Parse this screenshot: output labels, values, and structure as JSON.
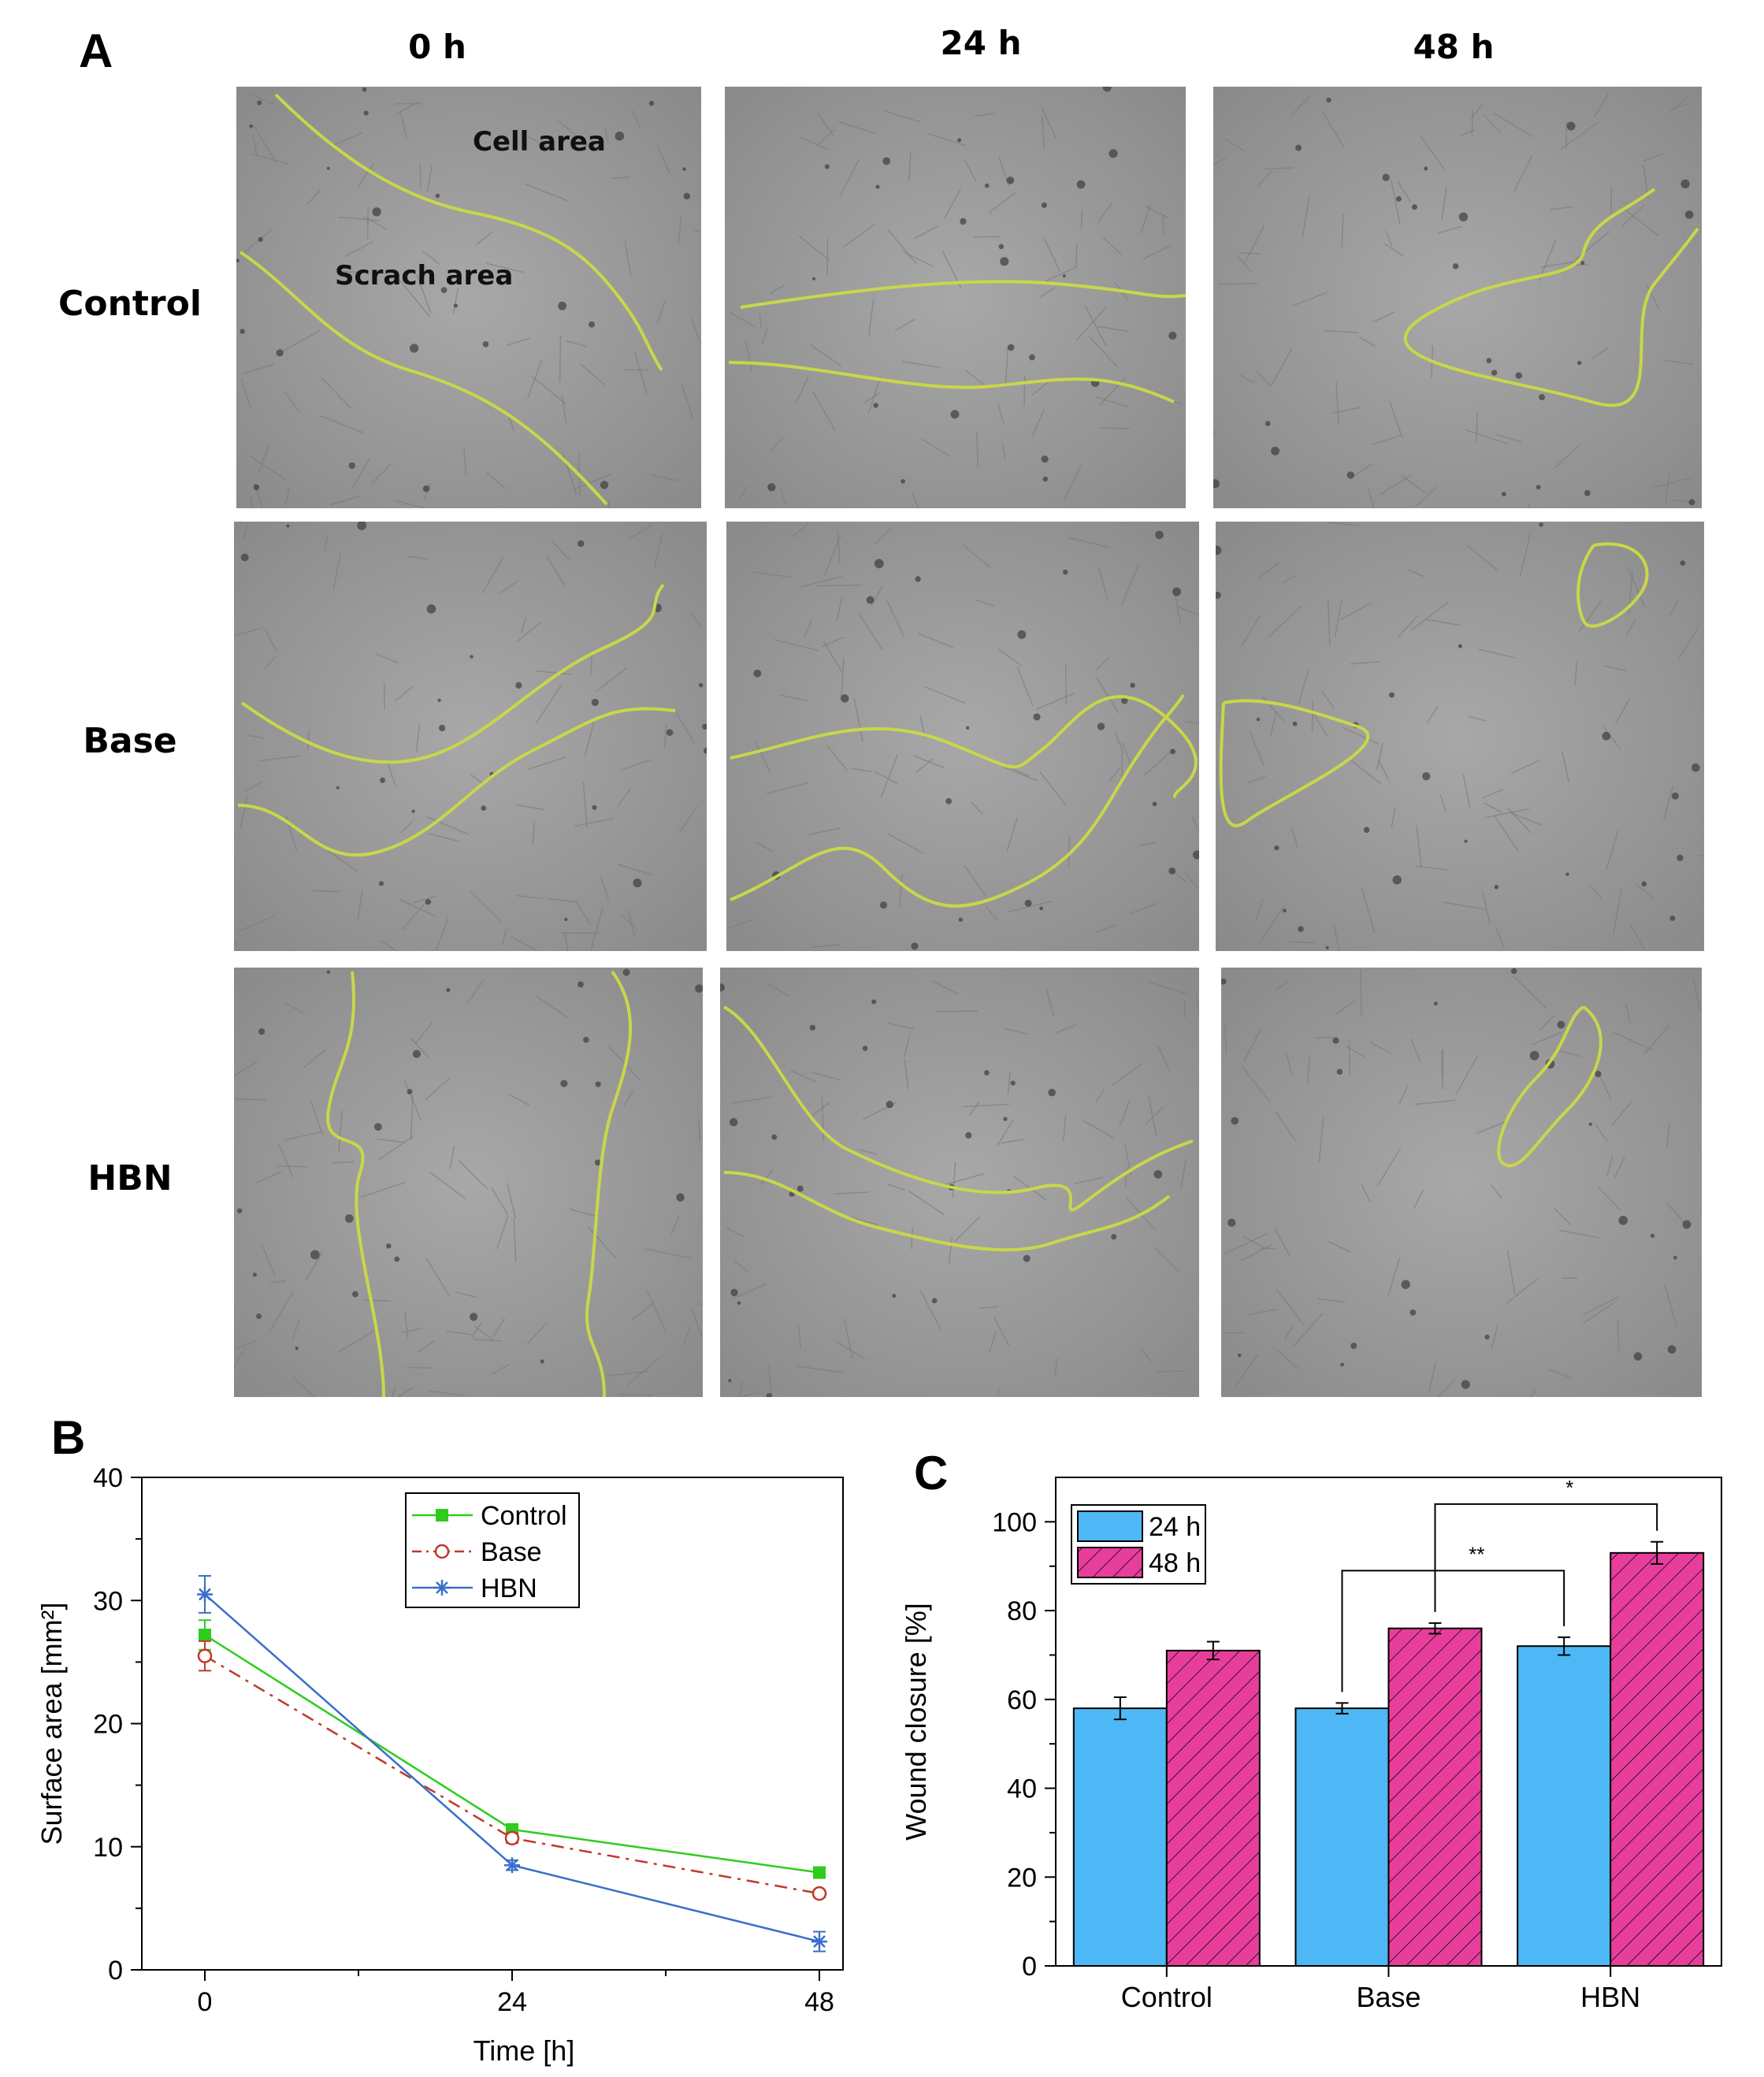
{
  "panelA": {
    "letter": "A",
    "columns": [
      "0 h",
      "24 h",
      "48 h"
    ],
    "rows": [
      "Control",
      "Base",
      "HBN"
    ],
    "annotations": {
      "cell_area": "Cell area",
      "scratch_area": "Scrach area"
    },
    "outline_color": "#c9d64a"
  },
  "panelB": {
    "letter": "B"
  },
  "panelC": {
    "letter": "C"
  },
  "chart_data": [
    {
      "type": "line",
      "xlabel": "Time [h]",
      "ylabel": "Surface area [mm²]",
      "x": [
        0,
        24,
        48
      ],
      "xticks": [
        "0",
        "24",
        "48"
      ],
      "ylim": [
        0,
        40
      ],
      "yticks": [
        "0",
        "10",
        "20",
        "30",
        "40"
      ],
      "legend_position": "top-center",
      "series": [
        {
          "name": "Control",
          "values": [
            27.2,
            11.4,
            7.9
          ],
          "errors": [
            1.2,
            0.3,
            0.3
          ],
          "color": "#2ecc1f",
          "marker": "square",
          "line": "solid"
        },
        {
          "name": "Base",
          "values": [
            25.5,
            10.7,
            6.2
          ],
          "errors": [
            1.2,
            0.4,
            0.3
          ],
          "color": "#c0392b",
          "marker": "circle-open",
          "line": "dash-dot"
        },
        {
          "name": "HBN",
          "values": [
            30.5,
            8.5,
            2.3
          ],
          "errors": [
            1.5,
            0.4,
            0.8
          ],
          "color": "#3a6fc9",
          "marker": "star",
          "line": "solid"
        }
      ]
    },
    {
      "type": "bar",
      "ylabel": "Wound closure [%]",
      "categories": [
        "Control",
        "Base",
        "HBN"
      ],
      "ylim": [
        0,
        110
      ],
      "yticks": [
        "0",
        "20",
        "40",
        "60",
        "80",
        "100"
      ],
      "legend_position": "top-left",
      "series": [
        {
          "name": "24 h",
          "values": [
            58,
            58,
            72
          ],
          "errors": [
            2.5,
            1.2,
            2.0
          ],
          "color": "#4db8f5",
          "pattern": "solid"
        },
        {
          "name": "48 h",
          "values": [
            71,
            76,
            93
          ],
          "errors": [
            2.0,
            1.2,
            2.5
          ],
          "color": "#e83e9b",
          "pattern": "hatched"
        }
      ],
      "significance": [
        {
          "label": "**",
          "from": "Base 24 h",
          "to": "HBN 24 h"
        },
        {
          "label": "*",
          "from": "Base 48 h",
          "to": "HBN 48 h"
        }
      ]
    }
  ]
}
